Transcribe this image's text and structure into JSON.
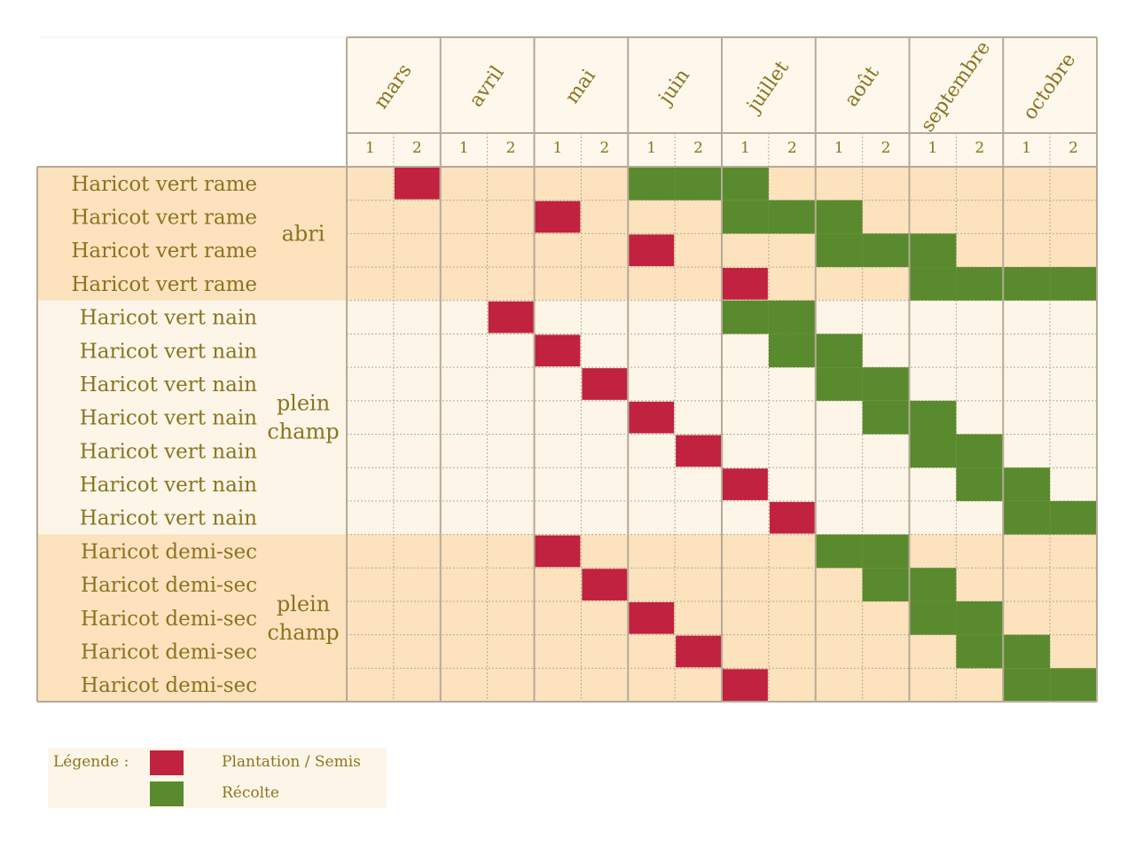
{
  "chart_data": {
    "type": "table",
    "title": "",
    "months": [
      "mars",
      "avril",
      "mai",
      "juin",
      "juillet",
      "août",
      "septembre",
      "octobre"
    ],
    "halves": [
      "1",
      "2"
    ],
    "groups": [
      {
        "label_lines": [
          "abri"
        ],
        "rows": [
          0,
          1,
          2,
          3
        ]
      },
      {
        "label_lines": [
          "plein",
          "champ"
        ],
        "rows": [
          4,
          5,
          6,
          7,
          8,
          9,
          10
        ]
      },
      {
        "label_lines": [
          "plein",
          "champ"
        ],
        "rows": [
          11,
          12,
          13,
          14,
          15
        ]
      }
    ],
    "rows": [
      {
        "name": "Haricot vert rame",
        "plantation": [
          1
        ],
        "recolte": [
          6,
          7,
          8
        ]
      },
      {
        "name": "Haricot vert rame",
        "plantation": [
          4
        ],
        "recolte": [
          8,
          9,
          10
        ]
      },
      {
        "name": "Haricot vert rame",
        "plantation": [
          6
        ],
        "recolte": [
          10,
          11,
          12
        ]
      },
      {
        "name": "Haricot vert rame",
        "plantation": [
          8
        ],
        "recolte": [
          12,
          13,
          14,
          15
        ]
      },
      {
        "name": "Haricot vert nain",
        "plantation": [
          3
        ],
        "recolte": [
          8,
          9
        ]
      },
      {
        "name": "Haricot vert nain",
        "plantation": [
          4
        ],
        "recolte": [
          9,
          10
        ]
      },
      {
        "name": "Haricot vert nain",
        "plantation": [
          5
        ],
        "recolte": [
          10,
          11
        ]
      },
      {
        "name": "Haricot vert nain",
        "plantation": [
          6
        ],
        "recolte": [
          11,
          12
        ]
      },
      {
        "name": "Haricot vert nain",
        "plantation": [
          7
        ],
        "recolte": [
          12,
          13
        ]
      },
      {
        "name": "Haricot vert nain",
        "plantation": [
          8
        ],
        "recolte": [
          13,
          14
        ]
      },
      {
        "name": "Haricot vert nain",
        "plantation": [
          9
        ],
        "recolte": [
          14,
          15
        ]
      },
      {
        "name": "Haricot demi-sec",
        "plantation": [
          4
        ],
        "recolte": [
          10,
          11
        ]
      },
      {
        "name": "Haricot demi-sec",
        "plantation": [
          5
        ],
        "recolte": [
          11,
          12
        ]
      },
      {
        "name": "Haricot demi-sec",
        "plantation": [
          6
        ],
        "recolte": [
          12,
          13
        ]
      },
      {
        "name": "Haricot demi-sec",
        "plantation": [
          7
        ],
        "recolte": [
          13,
          14
        ]
      },
      {
        "name": "Haricot demi-sec",
        "plantation": [
          8
        ],
        "recolte": [
          14,
          15
        ]
      }
    ],
    "legend": {
      "title": "Légende :",
      "plantation_label": "Plantation / Semis",
      "recolte_label": "Récolte"
    },
    "colors": {
      "plantation": "#c0223f",
      "recolte": "#5a8a2e",
      "band_dark": "#fce2bd",
      "band_light": "#fdf5e8",
      "header_bg": "#fdf7ec",
      "text": "#8a7420",
      "border": "#b5aa96"
    }
  }
}
